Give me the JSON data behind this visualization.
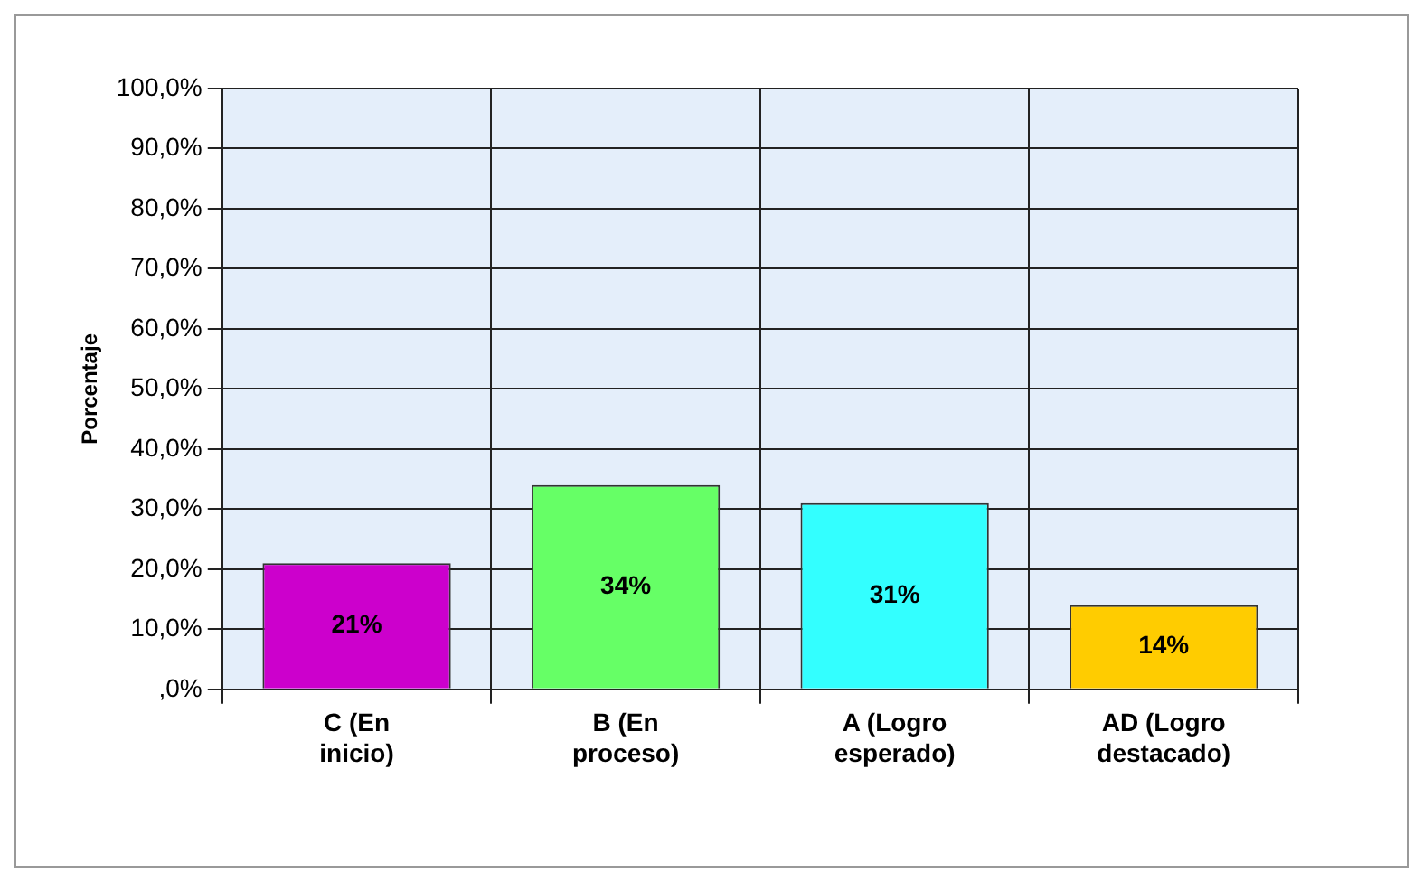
{
  "chart_data": {
    "type": "bar",
    "ylabel": "Porcentaje",
    "categories": [
      "C (En inicio)",
      "B (En proceso)",
      "A (Logro esperado)",
      "AD (Logro destacado)"
    ],
    "values": [
      21,
      34,
      31,
      14
    ],
    "colors": [
      "#cc00cc",
      "#66ff66",
      "#33ffff",
      "#ffcc00"
    ],
    "value_labels": [
      "21%",
      "34%",
      "31%",
      "14%"
    ],
    "ylim": [
      0,
      100
    ],
    "yticks": [
      {
        "value": 0,
        "label": ",0%"
      },
      {
        "value": 10,
        "label": "10,0%"
      },
      {
        "value": 20,
        "label": "20,0%"
      },
      {
        "value": 30,
        "label": "30,0%"
      },
      {
        "value": 40,
        "label": "40,0%"
      },
      {
        "value": 50,
        "label": "50,0%"
      },
      {
        "value": 60,
        "label": "60,0%"
      },
      {
        "value": 70,
        "label": "70,0%"
      },
      {
        "value": 80,
        "label": "80,0%"
      },
      {
        "value": 90,
        "label": "90,0%"
      },
      {
        "value": 100,
        "label": "100,0%"
      }
    ],
    "grid": true
  }
}
